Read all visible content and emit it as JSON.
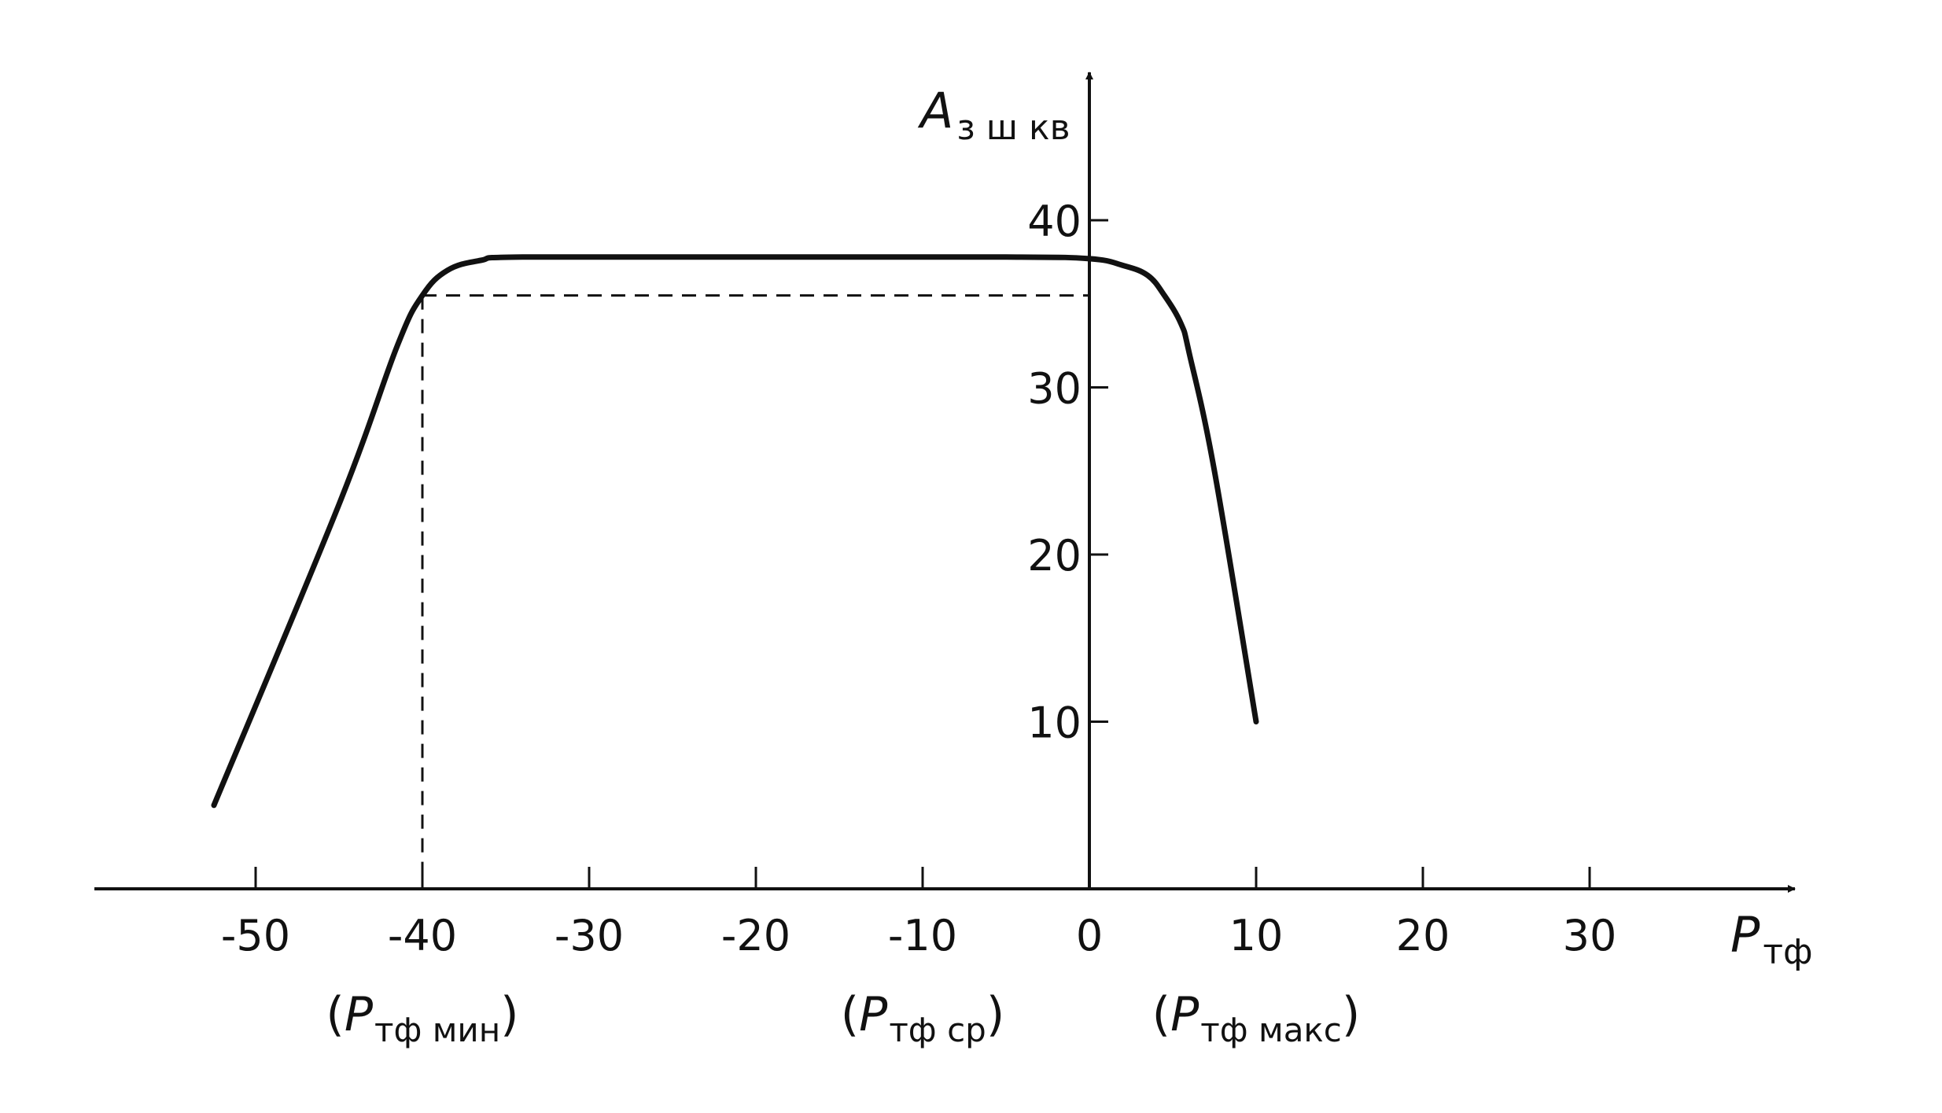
{
  "chart_data": {
    "type": "line",
    "title": "",
    "xlabel": {
      "main": "P",
      "sub": "тф"
    },
    "ylabel": {
      "main": "A",
      "sub": "з ш кв"
    },
    "x_ticks": [
      -50,
      -40,
      -30,
      -20,
      -10,
      0,
      10,
      20,
      30
    ],
    "x_tick_labels": [
      "-50",
      "-40",
      "-30",
      "-20",
      "-10",
      "0",
      "10",
      "20",
      "30"
    ],
    "y_ticks": [
      10,
      20,
      30,
      40
    ],
    "y_tick_labels": [
      "10",
      "20",
      "30",
      "40"
    ],
    "xlim": [
      -60,
      42
    ],
    "ylim": [
      0,
      48
    ],
    "grid": false,
    "series": [
      {
        "x": [
          -52.5,
          -45,
          -41.5,
          -40,
          -38.5,
          -36.5,
          -34,
          -20,
          -5,
          0,
          2,
          3.5,
          4.5,
          5.5,
          6,
          7.5,
          10
        ],
        "y": [
          5,
          23,
          32.5,
          35.5,
          37,
          37.6,
          37.8,
          37.8,
          37.8,
          37.7,
          37.3,
          36.7,
          35.5,
          33.8,
          32,
          25,
          10
        ]
      }
    ],
    "reference_lines": {
      "level_y": 35.5,
      "vertical_x": -40
    },
    "annotations": [
      {
        "x": -40,
        "open": "(",
        "main": "P",
        "sub": "тф мин",
        "close": ")"
      },
      {
        "x": -10,
        "open": "(",
        "main": "P",
        "sub": "тф ср",
        "close": ")"
      },
      {
        "x": 10,
        "open": "(",
        "main": "P",
        "sub": "тф макс",
        "close": ")"
      }
    ]
  }
}
